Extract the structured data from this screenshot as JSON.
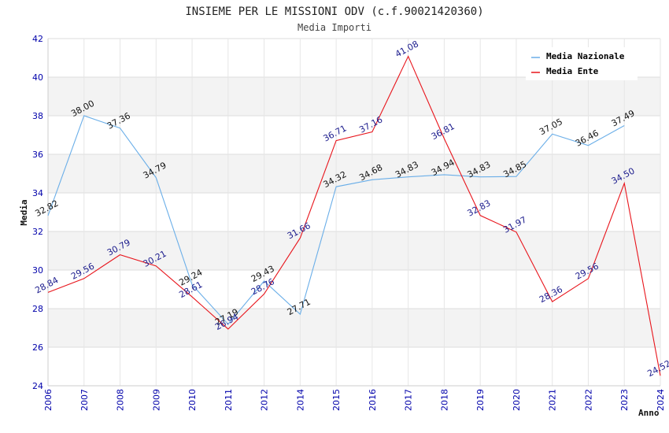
{
  "chart_data": {
    "type": "line",
    "title": "INSIEME PER LE MISSIONI ODV (c.f.90021420360)",
    "subtitle": "Media Importi",
    "ylabel": "Media",
    "xlabel": "Anno",
    "ylim": [
      24,
      42
    ],
    "yticks": [
      "24",
      "26",
      "28",
      "30",
      "32",
      "34",
      "36",
      "38",
      "40",
      "42"
    ],
    "categories": [
      "2006",
      "2007",
      "2008",
      "2009",
      "2010",
      "2011",
      "2012",
      "2014",
      "2015",
      "2016",
      "2017",
      "2018",
      "2019",
      "2020",
      "2021",
      "2022",
      "2023",
      "2024"
    ],
    "series": [
      {
        "name": "Media Nazionale",
        "color": "#6aaee8",
        "values": [
          32.82,
          38.0,
          37.36,
          34.79,
          29.24,
          27.19,
          29.43,
          27.71,
          34.32,
          34.68,
          34.83,
          34.94,
          34.83,
          34.85,
          37.05,
          36.46,
          37.49,
          null
        ],
        "labels": [
          "32.82",
          "38.00",
          "37.36",
          "34.79",
          "29.24",
          "27.19",
          "29.43",
          "27.71",
          "34.32",
          "34.68",
          "34.83",
          "34.94",
          "34.83",
          "34.85",
          "37.05",
          "36.46",
          "37.49",
          ""
        ]
      },
      {
        "name": "Media Ente",
        "color": "#e8141b",
        "values": [
          28.84,
          29.56,
          30.79,
          30.21,
          28.61,
          26.94,
          28.76,
          31.66,
          36.71,
          37.16,
          41.08,
          36.81,
          32.83,
          31.97,
          28.36,
          29.56,
          34.5,
          24.52
        ],
        "labels": [
          "28.84",
          "29.56",
          "30.79",
          "30.21",
          "28.61",
          "26.94",
          "28.76",
          "31.66",
          "36.71",
          "37.16",
          "41.08",
          "36.81",
          "32.83",
          "31.97",
          "28.36",
          "29.56",
          "34.50",
          "24.52"
        ]
      }
    ],
    "grid": true,
    "legend": "top-right"
  }
}
